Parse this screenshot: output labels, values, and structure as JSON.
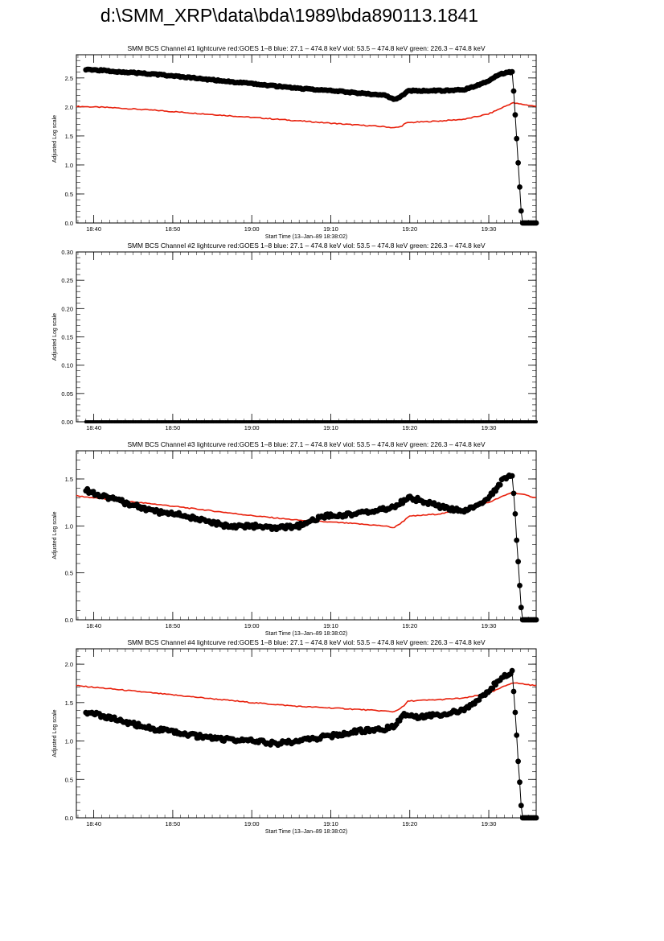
{
  "page": {
    "title": "d:\\SMM_XRP\\data\\bda\\1989\\bda890113.1841"
  },
  "colors": {
    "goes": "#e8200c",
    "bcs": "#000000",
    "axis": "#000000"
  },
  "chart_data": [
    {
      "type": "scatter",
      "title": "SMM BCS Channel #1 lightcurve  red:GOES 1–8  blue: 27.1 – 474.8 keV  viol: 53.5 – 474.8 keV  green: 226.3 – 474.8 keV",
      "xlabel": "Start Time (13–Jan–89 18:38:02)",
      "ylabel": "Adjusted Log scale",
      "xlim": [
        18.63,
        19.6
      ],
      "ylim": [
        0,
        2.9
      ],
      "x_ticks": [
        "18:40",
        "18:50",
        "19:00",
        "19:10",
        "19:20",
        "19:30"
      ],
      "y_ticks": [
        "0.0",
        "0.5",
        "1.0",
        "1.5",
        "2.0",
        "2.5"
      ],
      "series": [
        {
          "color": "red",
          "style": "line",
          "x": [
            18.63,
            18.7,
            18.8,
            18.9,
            19.0,
            19.1,
            19.2,
            19.28,
            19.3,
            19.315,
            19.32,
            19.33,
            19.4,
            19.45,
            19.5,
            19.55,
            19.6
          ],
          "y": [
            2.01,
            1.99,
            1.94,
            1.88,
            1.82,
            1.76,
            1.7,
            1.66,
            1.64,
            1.66,
            1.7,
            1.73,
            1.76,
            1.79,
            1.88,
            2.07,
            2.01
          ]
        },
        {
          "color": "black",
          "style": "markers",
          "x": [
            18.65,
            18.7,
            18.8,
            18.9,
            19.0,
            19.1,
            19.2,
            19.28,
            19.3,
            19.32,
            19.33,
            19.4,
            19.45,
            19.5,
            19.52,
            19.54,
            19.55,
            19.57,
            19.6
          ],
          "y": [
            2.65,
            2.62,
            2.56,
            2.48,
            2.4,
            2.32,
            2.26,
            2.2,
            2.13,
            2.2,
            2.28,
            2.28,
            2.3,
            2.45,
            2.56,
            2.6,
            2.6,
            0,
            0
          ]
        }
      ]
    },
    {
      "type": "scatter",
      "title": "SMM BCS Channel #2 lightcurve  red:GOES 1–8  blue: 27.1 – 474.8 keV  viol: 53.5 – 474.8 keV  green: 226.3 – 474.8 keV",
      "xlabel": "",
      "ylabel": "Adjusted Log scale",
      "xlim": [
        18.63,
        19.6
      ],
      "ylim": [
        0,
        0.3
      ],
      "x_ticks": [
        "18:40",
        "18:50",
        "19:00",
        "19:10",
        "19:20",
        "19:30"
      ],
      "y_ticks": [
        "0.00",
        "0.05",
        "0.10",
        "0.15",
        "0.20",
        "0.25",
        "0.30"
      ],
      "series": [
        {
          "color": "black",
          "style": "markers",
          "x": [
            18.65,
            19.6
          ],
          "y": [
            0,
            0
          ]
        }
      ]
    },
    {
      "type": "scatter",
      "title": "SMM BCS Channel #3 lightcurve  red:GOES 1–8  blue: 27.1 – 474.8 keV  viol: 53.5 – 474.8 keV  green: 226.3 – 474.8 keV",
      "xlabel": "Start Time (13–Jan–89 18:38:02)",
      "ylabel": "Adjusted Log scale",
      "xlim": [
        18.63,
        19.6
      ],
      "ylim": [
        0,
        1.8
      ],
      "x_ticks": [
        "18:40",
        "18:50",
        "19:00",
        "19:10",
        "19:20",
        "19:30"
      ],
      "y_ticks": [
        "0.0",
        "0.5",
        "1.0",
        "1.5"
      ],
      "series": [
        {
          "color": "red",
          "style": "line",
          "x": [
            18.63,
            18.7,
            18.8,
            18.9,
            19.0,
            19.1,
            19.2,
            19.28,
            19.3,
            19.32,
            19.33,
            19.4,
            19.45,
            19.5,
            19.55,
            19.6
          ],
          "y": [
            1.32,
            1.28,
            1.23,
            1.17,
            1.11,
            1.06,
            1.03,
            1.0,
            0.98,
            1.05,
            1.1,
            1.13,
            1.18,
            1.25,
            1.36,
            1.3
          ]
        },
        {
          "color": "black",
          "style": "markers",
          "x": [
            18.65,
            18.7,
            18.75,
            18.8,
            18.85,
            18.9,
            18.95,
            19.0,
            19.05,
            19.1,
            19.15,
            19.2,
            19.25,
            19.28,
            19.3,
            19.33,
            19.35,
            19.4,
            19.45,
            19.5,
            19.52,
            19.53,
            19.55,
            19.57,
            19.6
          ],
          "y": [
            1.38,
            1.3,
            1.22,
            1.15,
            1.12,
            1.05,
            1.0,
            1.0,
            0.97,
            1.0,
            1.1,
            1.12,
            1.15,
            1.18,
            1.2,
            1.3,
            1.28,
            1.2,
            1.15,
            1.3,
            1.42,
            1.5,
            1.55,
            0,
            0
          ]
        }
      ]
    },
    {
      "type": "scatter",
      "title": "SMM BCS Channel #4 lightcurve  red:GOES 1–8  blue: 27.1 – 474.8 keV  viol: 53.5 – 474.8 keV  green: 226.3 – 474.8 keV",
      "xlabel": "Start Time (13–Jan–89 18:38:02)",
      "ylabel": "Adjusted Log scale",
      "xlim": [
        18.63,
        19.6
      ],
      "ylim": [
        0,
        2.2
      ],
      "x_ticks": [
        "18:40",
        "18:50",
        "19:00",
        "19:10",
        "19:20",
        "19:30"
      ],
      "y_ticks": [
        "0.0",
        "0.5",
        "1.0",
        "1.5",
        "2.0"
      ],
      "series": [
        {
          "color": "red",
          "style": "line",
          "x": [
            18.63,
            18.7,
            18.8,
            18.9,
            19.0,
            19.1,
            19.2,
            19.28,
            19.3,
            19.32,
            19.33,
            19.4,
            19.45,
            19.5,
            19.55,
            19.6
          ],
          "y": [
            1.72,
            1.68,
            1.62,
            1.56,
            1.5,
            1.45,
            1.42,
            1.39,
            1.38,
            1.45,
            1.52,
            1.54,
            1.56,
            1.62,
            1.76,
            1.72
          ]
        },
        {
          "color": "black",
          "style": "markers",
          "x": [
            18.65,
            18.7,
            18.75,
            18.8,
            18.85,
            18.9,
            18.95,
            19.0,
            19.05,
            19.1,
            19.15,
            19.2,
            19.25,
            19.28,
            19.3,
            19.32,
            19.35,
            19.4,
            19.45,
            19.5,
            19.53,
            19.55,
            19.57,
            19.6
          ],
          "y": [
            1.38,
            1.3,
            1.22,
            1.15,
            1.1,
            1.05,
            1.02,
            1.0,
            0.97,
            1.0,
            1.05,
            1.1,
            1.15,
            1.15,
            1.2,
            1.35,
            1.32,
            1.35,
            1.4,
            1.65,
            1.85,
            1.9,
            0,
            0
          ]
        }
      ]
    }
  ]
}
